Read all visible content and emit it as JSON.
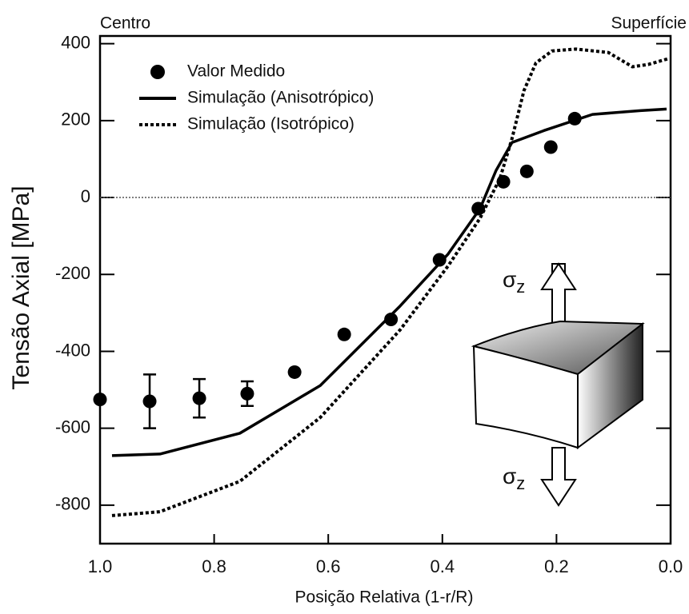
{
  "chart_data": {
    "type": "scatter-line",
    "xlabel": "Posição Relativa (1-r/R)",
    "ylabel": "Tensão Axial [MPa]",
    "left_label": "Centro",
    "right_label": "Superfície",
    "xlim": [
      1.0,
      0.0
    ],
    "xticks": [
      {
        "value": 1.0,
        "label": "1.0"
      },
      0.8,
      0.6,
      0.4,
      0.2,
      {
        "value": 0.0,
        "label": "0.0"
      }
    ],
    "ylim": [
      -900,
      420
    ],
    "yticks": [
      -800,
      -600,
      -400,
      -200,
      0,
      200,
      400
    ],
    "zero_line": true,
    "legend": "top-left",
    "series": [
      {
        "name": "Valor Medido",
        "kind": "points",
        "color": "#000000",
        "x": [
          1.0,
          0.913,
          0.826,
          0.742,
          0.659,
          0.572,
          0.49,
          0.405,
          0.337,
          0.293,
          0.252,
          0.21,
          0.168
        ],
        "values": [
          -525,
          -530,
          -522,
          -510,
          -454,
          -356,
          -317,
          -162,
          -29,
          41,
          68,
          131,
          205
        ],
        "errors": [
          null,
          70,
          50,
          32,
          null,
          null,
          null,
          null,
          null,
          null,
          null,
          null,
          null
        ]
      },
      {
        "name": "Simulação (Anisotrópico)",
        "kind": "solid",
        "color": "#000000",
        "x": [
          0.979,
          0.895,
          0.755,
          0.614,
          0.474,
          0.39,
          0.334,
          0.306,
          0.278,
          0.222,
          0.137,
          0.053,
          0.007
        ],
        "values": [
          -671,
          -667,
          -613,
          -489,
          -282,
          -147,
          -29,
          70,
          143,
          174,
          216,
          226,
          230
        ]
      },
      {
        "name": "Simulação (Isotrópico)",
        "kind": "dotted",
        "color": "#000000",
        "x": [
          0.979,
          0.895,
          0.755,
          0.614,
          0.474,
          0.39,
          0.334,
          0.299,
          0.278,
          0.257,
          0.236,
          0.208,
          0.166,
          0.109,
          0.067,
          0.039,
          0.004
        ],
        "values": [
          -827,
          -817,
          -738,
          -572,
          -344,
          -178,
          -54,
          50,
          153,
          278,
          350,
          381,
          386,
          377,
          340,
          346,
          361
        ]
      }
    ],
    "annotations": [
      {
        "symbol": "σ",
        "subscript": "z"
      },
      {
        "symbol": "σ",
        "subscript": "z"
      }
    ]
  }
}
